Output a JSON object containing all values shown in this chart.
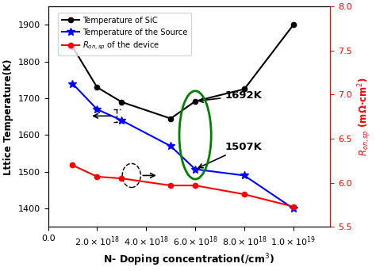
{
  "x_values": [
    1e+18,
    2e+18,
    3e+18,
    5e+18,
    6e+18,
    8e+18,
    1e+19
  ],
  "sic_temp": [
    1840,
    1730,
    1690,
    1645,
    1692,
    1725,
    1900
  ],
  "source_temp": [
    1740,
    1670,
    1640,
    1570,
    1507,
    1490,
    1400
  ],
  "ron_sp": [
    6.2,
    6.07,
    6.05,
    5.97,
    5.97,
    5.87,
    5.73
  ],
  "xlabel": "N- Doping concentration(/cm$^3$)",
  "ylabel_left": "Lttice Temperature(K)",
  "ylabel_right": "$R_{on,sp}$ (mΩ·cm$^2$)",
  "legend_sic": "Temperature of SiC",
  "legend_source": "Temperature of the Source",
  "legend_ron": "$R_{on,sp}$ of the device",
  "color_sic": "black",
  "color_source": "blue",
  "color_ron": "red",
  "ylim_left": [
    1350,
    1950
  ],
  "ylim_right": [
    5.5,
    8.0
  ],
  "xlim": [
    0.0,
    1.15e+19
  ],
  "xticks": [
    0.0,
    2e+18,
    4e+18,
    6e+18,
    8e+18,
    1e+19
  ],
  "yticks_left": [
    1400,
    1500,
    1600,
    1700,
    1800,
    1900
  ],
  "yticks_right": [
    5.5,
    6.0,
    6.5,
    7.0,
    7.5,
    8.0
  ]
}
